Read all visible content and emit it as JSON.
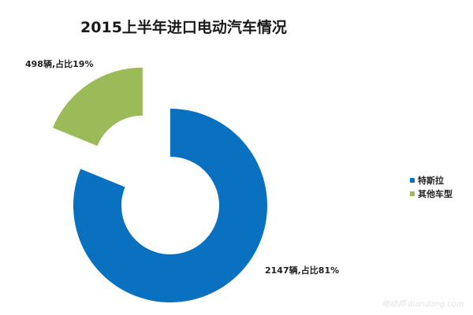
{
  "chart_data": {
    "type": "pie",
    "variant": "doughnut-exploded",
    "title": "2015上半年进口电动汽车情况",
    "categories": [
      "特斯拉",
      "其他车型"
    ],
    "values": [
      2147,
      498
    ],
    "percentages": [
      81,
      19
    ],
    "units": "辆",
    "data_labels": [
      "2147辆,占比81%",
      "498辆,占比19%"
    ],
    "colors": [
      "#0A70C0",
      "#9BBB59"
    ],
    "legend": {
      "position": "right",
      "entries": [
        "特斯拉",
        "其他车型"
      ]
    },
    "exploded_slice": "其他车型"
  },
  "title": "2015上半年进口电动汽车情况",
  "labels": {
    "tesla": "2147辆,占比81%",
    "other": "498辆,占比19%"
  },
  "legend": {
    "items": [
      {
        "label": "特斯拉",
        "color": "#0A70C0"
      },
      {
        "label": "其他车型",
        "color": "#9BBB59"
      }
    ]
  },
  "watermark": "电动邦 diandong.com"
}
